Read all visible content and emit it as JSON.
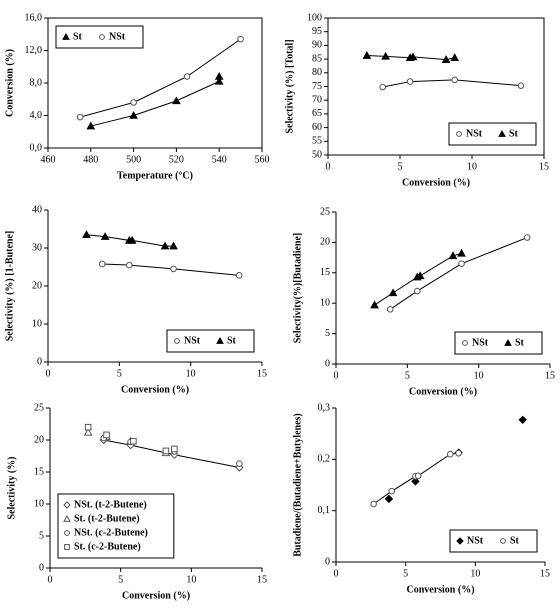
{
  "chart_data": [
    {
      "type": "scatter",
      "x_label": "Temperature (°C)",
      "y_label": "Conversion (%)",
      "xlim": [
        460,
        560
      ],
      "xticks": [
        460,
        480,
        500,
        520,
        540,
        560
      ],
      "ylim": [
        0,
        16
      ],
      "yticks": [
        {
          "value": 0,
          "label": "0,0"
        },
        {
          "value": 4,
          "label": "4,0"
        },
        {
          "value": 8,
          "label": "8,0"
        },
        {
          "value": 12,
          "label": "12,0"
        },
        {
          "value": 16,
          "label": "16,0"
        }
      ],
      "legend": "upper left",
      "frame": true,
      "series": [
        {
          "name": "St",
          "marker": "triangle",
          "filled": true,
          "color": "#000000",
          "line": true,
          "x": [
            480,
            500,
            520,
            540,
            540
          ],
          "values": [
            2.7,
            4.0,
            5.8,
            8.2,
            8.8
          ]
        },
        {
          "name": "NSt",
          "marker": "circle",
          "filled": false,
          "color": "#555555",
          "line": true,
          "x": [
            475,
            500,
            525,
            550
          ],
          "values": [
            3.8,
            5.6,
            8.8,
            13.4
          ]
        }
      ]
    },
    {
      "type": "scatter",
      "x_label": "Conversion (%)",
      "y_label": "Selectivity (%) [Total]",
      "xlim": [
        0,
        15
      ],
      "xticks": [
        0,
        5,
        10,
        15
      ],
      "ylim": [
        50,
        100
      ],
      "yticks": [
        50,
        55,
        60,
        65,
        70,
        75,
        80,
        85,
        90,
        95,
        100
      ],
      "legend": "lower right",
      "frame": true,
      "series": [
        {
          "name": "NSt",
          "marker": "circle",
          "filled": false,
          "color": "#555555",
          "line": true,
          "x": [
            3.8,
            5.7,
            8.8,
            13.4
          ],
          "values": [
            74.8,
            76.8,
            77.4,
            75.3
          ]
        },
        {
          "name": "St",
          "marker": "triangle",
          "filled": true,
          "color": "#000000",
          "line": true,
          "x": [
            2.7,
            4.0,
            5.7,
            5.9,
            8.2,
            8.8
          ],
          "values": [
            86.3,
            86.0,
            85.5,
            85.8,
            84.8,
            85.5
          ]
        }
      ]
    },
    {
      "type": "scatter",
      "x_label": "Conversion (%)",
      "y_label": "Selectivity (%) [1-Butene]",
      "xlim": [
        0,
        15
      ],
      "xticks": [
        0,
        5,
        10,
        15
      ],
      "ylim": [
        0,
        40
      ],
      "yticks": [
        0,
        10,
        20,
        30,
        40
      ],
      "legend": "lower right",
      "frame": false,
      "series": [
        {
          "name": "NSt",
          "marker": "circle",
          "filled": false,
          "color": "#555555",
          "line": true,
          "x": [
            3.8,
            5.7,
            8.8,
            13.4
          ],
          "values": [
            25.8,
            25.5,
            24.5,
            22.8
          ]
        },
        {
          "name": "St",
          "marker": "triangle",
          "filled": true,
          "color": "#000000",
          "line": true,
          "x": [
            2.7,
            4.0,
            5.7,
            5.9,
            8.2,
            8.8
          ],
          "values": [
            33.5,
            33.0,
            32.0,
            32.0,
            30.5,
            30.5
          ]
        }
      ]
    },
    {
      "type": "scatter",
      "x_label": "Conversion (%)",
      "y_label": "Selectivity(%)[Butadiene]",
      "xlim": [
        0,
        15
      ],
      "xticks": [
        0,
        5,
        10,
        15
      ],
      "ylim": [
        0,
        25
      ],
      "yticks": [
        0,
        5,
        10,
        15,
        20,
        25
      ],
      "legend": "lower right",
      "frame": false,
      "series": [
        {
          "name": "NSt",
          "marker": "circle",
          "filled": false,
          "color": "#555555",
          "line": true,
          "x": [
            3.8,
            5.7,
            8.8,
            13.4
          ],
          "values": [
            9.0,
            12.0,
            16.5,
            20.8
          ]
        },
        {
          "name": "St",
          "marker": "triangle",
          "filled": true,
          "color": "#000000",
          "line": true,
          "x": [
            2.7,
            4.0,
            5.7,
            5.9,
            8.2,
            8.8
          ],
          "values": [
            9.7,
            11.7,
            14.3,
            14.5,
            17.8,
            18.2
          ]
        }
      ]
    },
    {
      "type": "scatter",
      "x_label": "Conversion (%)",
      "y_label": "Selectivity (%)",
      "xlim": [
        0,
        15
      ],
      "xticks": [
        0,
        5,
        10,
        15
      ],
      "ylim": [
        0,
        25
      ],
      "yticks": [
        0,
        5,
        10,
        15,
        20,
        25
      ],
      "legend": "lower left",
      "frame": false,
      "series": [
        {
          "name": "NSt. (t-2-Butene)",
          "marker": "diamond",
          "filled": false,
          "color": "#555555",
          "line": true,
          "x": [
            3.8,
            5.7,
            8.8,
            13.4
          ],
          "values": [
            20.0,
            19.2,
            17.7,
            15.7
          ]
        },
        {
          "name": "St. (t-2-Butene)",
          "marker": "triangle",
          "filled": false,
          "color": "#555555",
          "line": false,
          "x": [
            2.7,
            4.0,
            5.7,
            8.2
          ],
          "values": [
            21.2,
            20.5,
            19.8,
            18.0
          ]
        },
        {
          "name": "NSt. (c-2-Butene)",
          "marker": "circle",
          "filled": false,
          "color": "#555555",
          "line": false,
          "x": [
            3.8,
            5.7,
            8.8,
            13.4
          ],
          "values": [
            20.3,
            19.7,
            18.2,
            16.3
          ]
        },
        {
          "name": "St. (c-2-Butene)",
          "marker": "square",
          "filled": false,
          "color": "#555555",
          "line": false,
          "x": [
            2.7,
            4.0,
            5.9,
            8.2,
            8.8
          ],
          "values": [
            22.0,
            20.8,
            19.8,
            18.3,
            18.6
          ]
        }
      ]
    },
    {
      "type": "scatter",
      "x_label": "Conversion (%)",
      "y_label": "Butadiene/(Butadiene+Butylenes)",
      "xlim": [
        0,
        15
      ],
      "xticks": [
        0,
        5,
        10,
        15
      ],
      "ylim": [
        0,
        0.3
      ],
      "yticks": [
        0,
        {
          "value": 0.1,
          "label": "0,1"
        },
        {
          "value": 0.2,
          "label": "0,2"
        },
        {
          "value": 0.3,
          "label": "0,3"
        }
      ],
      "legend": "lower right",
      "frame": false,
      "series": [
        {
          "name": "NSt",
          "marker": "diamond",
          "filled": true,
          "color": "#000000",
          "line": false,
          "x": [
            3.8,
            5.7,
            8.8,
            13.4
          ],
          "values": [
            0.123,
            0.157,
            0.213,
            0.277
          ]
        },
        {
          "name": "St",
          "marker": "circle",
          "filled": false,
          "color": "#555555",
          "line": true,
          "x": [
            2.7,
            4.0,
            5.7,
            5.9,
            8.2,
            8.8
          ],
          "values": [
            0.113,
            0.138,
            0.167,
            0.168,
            0.21,
            0.212
          ]
        }
      ]
    }
  ]
}
